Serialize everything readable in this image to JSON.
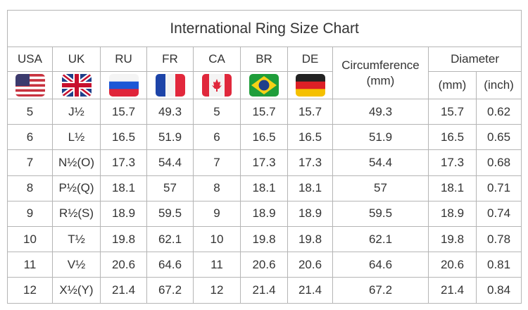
{
  "title": "International Ring Size Chart",
  "headers": {
    "countries": [
      "USA",
      "UK",
      "RU",
      "FR",
      "CA",
      "BR",
      "DE"
    ],
    "circumference": "Circumference\n(mm)",
    "diameter": "Diameter",
    "diameter_units": [
      "(mm)",
      "(inch)"
    ]
  },
  "rows": [
    [
      "5",
      "J½",
      "15.7",
      "49.3",
      "5",
      "15.7",
      "15.7",
      "49.3",
      "15.7",
      "0.62"
    ],
    [
      "6",
      "L½",
      "16.5",
      "51.9",
      "6",
      "16.5",
      "16.5",
      "51.9",
      "16.5",
      "0.65"
    ],
    [
      "7",
      "N½(O)",
      "17.3",
      "54.4",
      "7",
      "17.3",
      "17.3",
      "54.4",
      "17.3",
      "0.68"
    ],
    [
      "8",
      "P½(Q)",
      "18.1",
      "57",
      "8",
      "18.1",
      "18.1",
      "57",
      "18.1",
      "0.71"
    ],
    [
      "9",
      "R½(S)",
      "18.9",
      "59.5",
      "9",
      "18.9",
      "18.9",
      "59.5",
      "18.9",
      "0.74"
    ],
    [
      "10",
      "T½",
      "19.8",
      "62.1",
      "10",
      "19.8",
      "19.8",
      "62.1",
      "19.8",
      "0.78"
    ],
    [
      "11",
      "V½",
      "20.6",
      "64.6",
      "11",
      "20.6",
      "20.6",
      "64.6",
      "20.6",
      "0.81"
    ],
    [
      "12",
      "X½(Y)",
      "21.4",
      "67.2",
      "12",
      "21.4",
      "21.4",
      "67.2",
      "21.4",
      "0.84"
    ]
  ]
}
